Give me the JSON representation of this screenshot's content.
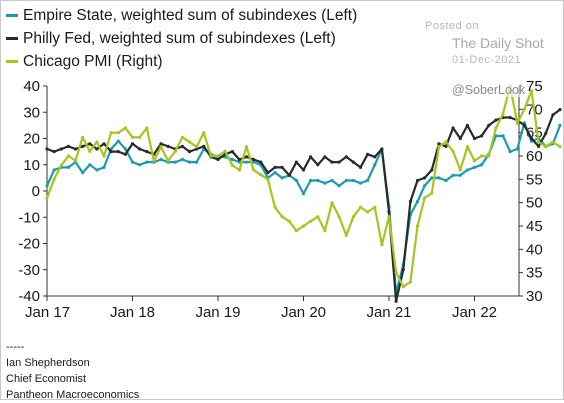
{
  "chart_data": {
    "type": "line",
    "x_ticks": [
      "Jan 17",
      "Jan 18",
      "Jan 19",
      "Jan 20",
      "Jan 21",
      "Jan 22"
    ],
    "left_axis": {
      "range": [
        -40,
        40
      ],
      "ticks": [
        -40,
        -30,
        -20,
        -10,
        0,
        10,
        20,
        30,
        40
      ]
    },
    "right_axis": {
      "range": [
        30,
        75
      ],
      "ticks": [
        30,
        35,
        40,
        45,
        50,
        55,
        60,
        65,
        70,
        75
      ]
    },
    "grid": false,
    "legend_position": "top-left",
    "series": [
      {
        "name": "Empire State, weighted sum of subindexes (Left)",
        "axis": "left",
        "color": "#1a9bb0",
        "values": [
          2,
          8,
          9,
          9,
          11,
          7,
          10,
          8,
          9,
          16,
          19,
          16,
          11,
          10,
          11,
          11,
          12,
          11,
          11,
          12,
          11,
          11,
          16,
          14,
          13,
          13,
          12,
          11,
          11,
          11,
          10,
          5,
          7,
          5,
          6,
          4,
          -1,
          4,
          4,
          3,
          4,
          2,
          4,
          4,
          3,
          4,
          10,
          16,
          -6,
          -39,
          -28,
          -9,
          -4,
          2,
          5,
          5,
          4,
          6,
          6,
          8,
          9,
          10,
          14,
          21,
          21,
          15,
          16,
          26,
          19,
          20,
          17,
          18,
          25
        ]
      },
      {
        "name": "Philly Fed, weighted sum of subindexes (Left)",
        "axis": "left",
        "color": "#2a2a2a",
        "values": [
          16,
          15,
          16,
          17,
          16,
          17,
          18,
          16,
          18,
          15,
          15,
          14,
          18,
          16,
          15,
          14,
          18,
          17,
          16,
          17,
          15,
          16,
          17,
          13,
          12,
          14,
          15,
          12,
          13,
          12,
          11,
          7,
          9,
          9,
          6,
          11,
          8,
          13,
          10,
          13,
          11,
          11,
          13,
          11,
          9,
          14,
          13,
          16,
          -8,
          -42,
          -30,
          -4,
          4,
          5,
          8,
          18,
          17,
          24,
          20,
          25,
          20,
          21,
          25,
          27,
          28,
          28,
          27,
          25,
          20,
          17,
          22,
          29,
          31
        ]
      },
      {
        "name": "Chicago PMI (Right)",
        "axis": "right",
        "color": "#a8c41e",
        "values": [
          51,
          55,
          58,
          60,
          59,
          64,
          61,
          63,
          60,
          65,
          65,
          66,
          64,
          64,
          66,
          59,
          62,
          59,
          61,
          64,
          63,
          62,
          65,
          60,
          60,
          61,
          58,
          57,
          62,
          57,
          56,
          55,
          49,
          47,
          46,
          44,
          45,
          46,
          47,
          44,
          50,
          47,
          43,
          47,
          49,
          48,
          49,
          41,
          47,
          35,
          32,
          33,
          45,
          51,
          52,
          62,
          63,
          61,
          57,
          62,
          59,
          60,
          60,
          66,
          69,
          75,
          67,
          70,
          74,
          63,
          62,
          63,
          62
        ]
      }
    ]
  },
  "legend": {
    "empire": "Empire State, weighted sum of subindexes (Left)",
    "philly": "Philly Fed, weighted sum of subindexes (Left)",
    "chicago": "Chicago PMI (Right)"
  },
  "colors": {
    "empire": "#1a9bb0",
    "philly": "#2a2a2a",
    "chicago": "#a8c41e"
  },
  "watermark": {
    "posted": "Posted on",
    "source": "The Daily Shot",
    "date": "01-Dec-2021",
    "handle": "@SoberLook"
  },
  "footer": {
    "dashes": "-----",
    "name": "Ian Shepherdson",
    "title": "Chief Economist",
    "org": "Pantheon Macroeconomics"
  }
}
